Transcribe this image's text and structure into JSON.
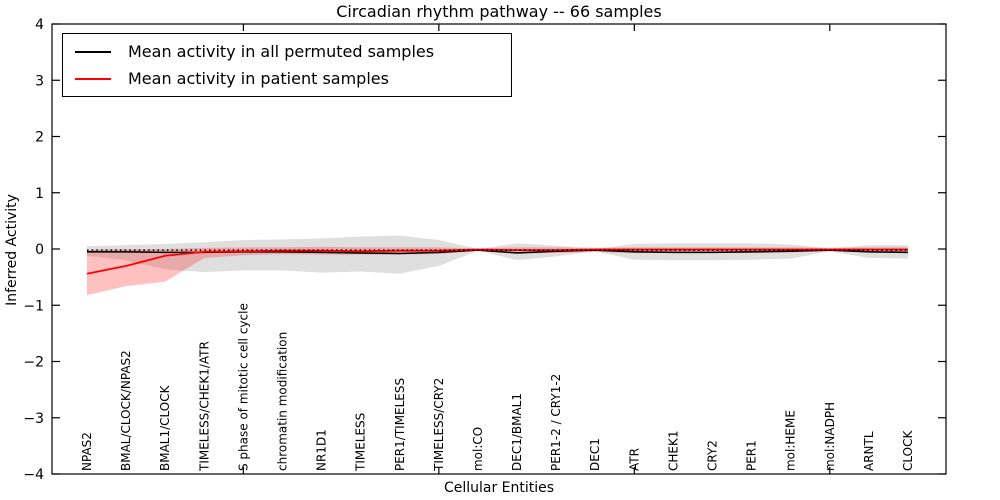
{
  "title": "Circadian rhythm pathway -- 66 samples",
  "chart_data": {
    "type": "line",
    "title": "Circadian rhythm pathway -- 66 samples",
    "xlabel": "Cellular Entities",
    "ylabel": "Inferred Activity",
    "ylim": [
      -4,
      4
    ],
    "yticks": [
      -4,
      -3,
      -2,
      -1,
      0,
      1,
      2,
      3,
      4
    ],
    "grid": false,
    "legend_position": "upper-left",
    "categories": [
      "NPAS2",
      "BMAL/CLOCK/NPAS2",
      "BMAL1/CLOCK",
      "TIMELESS/CHEK1/ATR",
      "S phase of mitotic cell cycle",
      "chromatin modification",
      "NR1D1",
      "TIMELESS",
      "PER1/TIMELESS",
      "TIMELESS/CRY2",
      "mol:CO",
      "DEC1/BMAL1",
      "PER1-2 / CRY1-2",
      "DEC1",
      "ATR",
      "CHEK1",
      "CRY2",
      "PER1",
      "mol:HEME",
      "mol:NADPH",
      "ARNTL",
      "CLOCK"
    ],
    "series": [
      {
        "name": "Mean activity in all permuted samples",
        "color": "#000000",
        "values": [
          -0.05,
          -0.05,
          -0.06,
          -0.06,
          -0.05,
          -0.05,
          -0.06,
          -0.07,
          -0.08,
          -0.06,
          -0.02,
          -0.07,
          -0.04,
          -0.02,
          -0.05,
          -0.06,
          -0.06,
          -0.05,
          -0.04,
          -0.02,
          -0.05,
          -0.06
        ],
        "band_upper": [
          0.05,
          0.07,
          0.09,
          0.12,
          0.16,
          0.17,
          0.19,
          0.22,
          0.24,
          0.16,
          0.0,
          0.1,
          0.06,
          0.0,
          0.09,
          0.1,
          0.1,
          0.1,
          0.08,
          0.01,
          0.07,
          0.07
        ],
        "band_lower": [
          -0.12,
          -0.2,
          -0.36,
          -0.41,
          -0.38,
          -0.38,
          -0.42,
          -0.4,
          -0.44,
          -0.3,
          -0.03,
          -0.2,
          -0.13,
          -0.04,
          -0.19,
          -0.2,
          -0.2,
          -0.19,
          -0.17,
          -0.04,
          -0.16,
          -0.17
        ],
        "band_color": "rgba(140,140,140,0.28)"
      },
      {
        "name": "Mean activity in patient samples",
        "color": "#ff0000",
        "values": [
          -0.44,
          -0.3,
          -0.12,
          -0.05,
          -0.04,
          -0.03,
          -0.03,
          -0.04,
          -0.03,
          -0.03,
          -0.01,
          -0.02,
          -0.02,
          -0.01,
          -0.01,
          -0.01,
          -0.01,
          -0.01,
          -0.01,
          -0.01,
          -0.01,
          -0.01
        ],
        "band_upper": [
          -0.01,
          0.0,
          0.0,
          0.02,
          0.03,
          0.03,
          0.04,
          0.03,
          0.03,
          0.03,
          0.01,
          0.03,
          0.03,
          0.02,
          0.03,
          0.03,
          0.03,
          0.03,
          0.03,
          0.02,
          0.03,
          0.03
        ],
        "band_lower": [
          -0.82,
          -0.66,
          -0.58,
          -0.16,
          -0.11,
          -0.09,
          -0.1,
          -0.1,
          -0.1,
          -0.09,
          -0.03,
          -0.08,
          -0.07,
          -0.05,
          -0.07,
          -0.07,
          -0.07,
          -0.07,
          -0.06,
          -0.04,
          -0.06,
          -0.06
        ],
        "band_color": "rgba(255,45,45,0.30)"
      }
    ],
    "reference_line": {
      "value": -0.02,
      "style": "dotted",
      "color": "#000000"
    }
  }
}
